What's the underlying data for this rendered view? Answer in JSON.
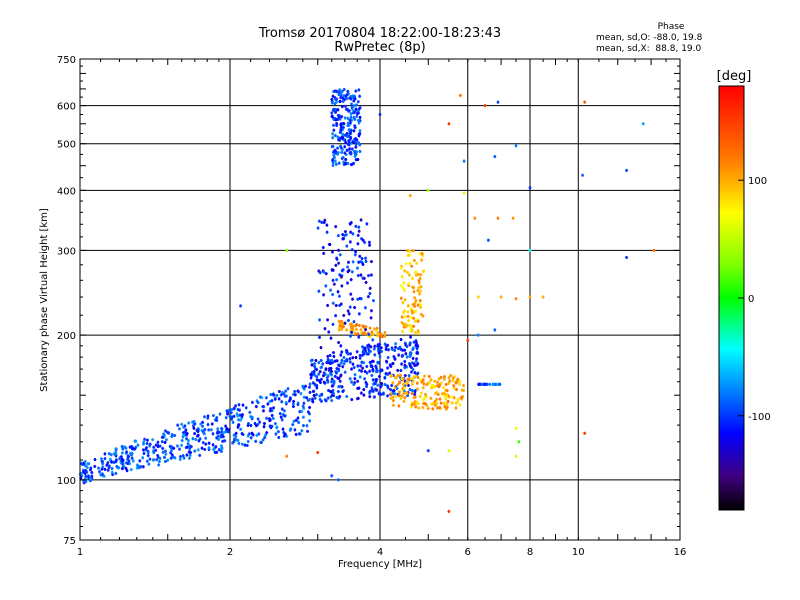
{
  "chart_data": {
    "type": "scatter",
    "title": "Tromsø 20170804 18:22:00-18:23:43",
    "subtitle": "RwPretec (8p)",
    "xlabel": "Frequency [MHz]",
    "ylabel": "Stationary phase Virtual Height [km]",
    "xscale": "log",
    "yscale": "log",
    "xlim": [
      1,
      16
    ],
    "ylim": [
      75,
      750
    ],
    "xticks": [
      1,
      2,
      4,
      6,
      8,
      10,
      16
    ],
    "xtick_labels": [
      "1",
      "2",
      "4",
      "6",
      "8",
      "10",
      "16"
    ],
    "yticks": [
      75,
      100,
      200,
      300,
      400,
      500,
      600,
      750
    ],
    "ytick_labels": [
      "75",
      "100",
      "200",
      "300",
      "400",
      "500",
      "600",
      "750"
    ],
    "grid": true,
    "colorbar": {
      "label": "[deg]",
      "range": [
        -180,
        180
      ],
      "ticks": [
        100,
        0,
        -100
      ],
      "tick_labels": [
        "100",
        "0",
        "-100"
      ]
    },
    "phase_stats": {
      "title": "Phase",
      "o_line": "mean, sd,O: -88.0, 19.8",
      "x_line": "mean, sd,X:  88.8, 19.0"
    },
    "clusters": [
      {
        "name": "low-layer",
        "x_range": [
          1.0,
          2.9
        ],
        "y_start": [
          98,
          108
        ],
        "y_end": [
          125,
          160
        ],
        "phase": -95,
        "count": 520
      },
      {
        "name": "f-layer-o",
        "x_range": [
          2.9,
          4.8
        ],
        "y_start": [
          145,
          180
        ],
        "y_end": [
          150,
          200
        ],
        "phase": -105,
        "count": 380
      },
      {
        "name": "high-cluster",
        "x_range": [
          3.2,
          3.65
        ],
        "y_start": [
          450,
          650
        ],
        "y_end": [
          450,
          650
        ],
        "phase": -98,
        "count": 230
      },
      {
        "name": "f-layer-x-lower",
        "x_range": [
          4.2,
          5.9
        ],
        "y_start": [
          140,
          165
        ],
        "y_end": [
          140,
          165
        ],
        "phase": 100,
        "count": 170
      },
      {
        "name": "f-layer-x-vertical",
        "x_range": [
          4.4,
          4.9
        ],
        "y_start": [
          200,
          300
        ],
        "y_end": [
          200,
          300
        ],
        "phase": 95,
        "count": 100
      },
      {
        "name": "f-layer-x-diag",
        "x_range": [
          3.3,
          4.1
        ],
        "y_start": [
          205,
          215
        ],
        "y_end": [
          195,
          205
        ],
        "phase": 105,
        "count": 70
      },
      {
        "name": "mid-o-cloud",
        "x_range": [
          3.0,
          3.9
        ],
        "y_start": [
          180,
          350
        ],
        "y_end": [
          180,
          350
        ],
        "phase": -110,
        "count": 150
      },
      {
        "name": "o-trace-6.5",
        "x_range": [
          6.3,
          7.0
        ],
        "y_start": [
          158,
          158
        ],
        "y_end": [
          158,
          158
        ],
        "phase": -95,
        "count": 25
      }
    ],
    "scattered_points": [
      {
        "x": 4.6,
        "y": 390,
        "phase": 105
      },
      {
        "x": 4.0,
        "y": 575,
        "phase": -100
      },
      {
        "x": 5.8,
        "y": 630,
        "phase": 120
      },
      {
        "x": 6.5,
        "y": 600,
        "phase": 150
      },
      {
        "x": 6.9,
        "y": 610,
        "phase": -95
      },
      {
        "x": 6.8,
        "y": 470,
        "phase": -90
      },
      {
        "x": 7.5,
        "y": 495,
        "phase": -80
      },
      {
        "x": 8.0,
        "y": 405,
        "phase": -100
      },
      {
        "x": 10.2,
        "y": 430,
        "phase": -90
      },
      {
        "x": 12.5,
        "y": 440,
        "phase": -95
      },
      {
        "x": 13.5,
        "y": 550,
        "phase": -70
      },
      {
        "x": 10.3,
        "y": 610,
        "phase": 140
      },
      {
        "x": 5.5,
        "y": 550,
        "phase": 150
      },
      {
        "x": 5.9,
        "y": 460,
        "phase": -80
      },
      {
        "x": 6.9,
        "y": 350,
        "phase": 120
      },
      {
        "x": 6.6,
        "y": 315,
        "phase": -95
      },
      {
        "x": 7.4,
        "y": 350,
        "phase": 110
      },
      {
        "x": 8.0,
        "y": 300,
        "phase": -40
      },
      {
        "x": 12.5,
        "y": 290,
        "phase": -100
      },
      {
        "x": 14.2,
        "y": 300,
        "phase": 120
      },
      {
        "x": 6.2,
        "y": 350,
        "phase": 110
      },
      {
        "x": 5.0,
        "y": 400,
        "phase": 40
      },
      {
        "x": 5.9,
        "y": 395,
        "phase": 80
      },
      {
        "x": 2.6,
        "y": 300,
        "phase": 30
      },
      {
        "x": 2.1,
        "y": 230,
        "phase": -100
      },
      {
        "x": 6.3,
        "y": 240,
        "phase": 90
      },
      {
        "x": 7.0,
        "y": 240,
        "phase": 100
      },
      {
        "x": 7.5,
        "y": 238,
        "phase": 110
      },
      {
        "x": 8.0,
        "y": 240,
        "phase": 105
      },
      {
        "x": 8.5,
        "y": 240,
        "phase": 100
      },
      {
        "x": 7.5,
        "y": 128,
        "phase": 70
      },
      {
        "x": 7.5,
        "y": 112,
        "phase": 60
      },
      {
        "x": 7.6,
        "y": 120,
        "phase": 10
      },
      {
        "x": 10.3,
        "y": 125,
        "phase": 150
      },
      {
        "x": 5.5,
        "y": 86,
        "phase": 150
      },
      {
        "x": 3.2,
        "y": 102,
        "phase": -95
      },
      {
        "x": 3.3,
        "y": 100,
        "phase": -90
      },
      {
        "x": 3.0,
        "y": 114,
        "phase": 150
      },
      {
        "x": 2.6,
        "y": 112,
        "phase": 120
      },
      {
        "x": 5.0,
        "y": 115,
        "phase": -100
      },
      {
        "x": 5.5,
        "y": 115,
        "phase": 60
      },
      {
        "x": 6.0,
        "y": 195,
        "phase": 150
      },
      {
        "x": 6.3,
        "y": 200,
        "phase": -80
      },
      {
        "x": 6.8,
        "y": 205,
        "phase": -90
      }
    ]
  }
}
